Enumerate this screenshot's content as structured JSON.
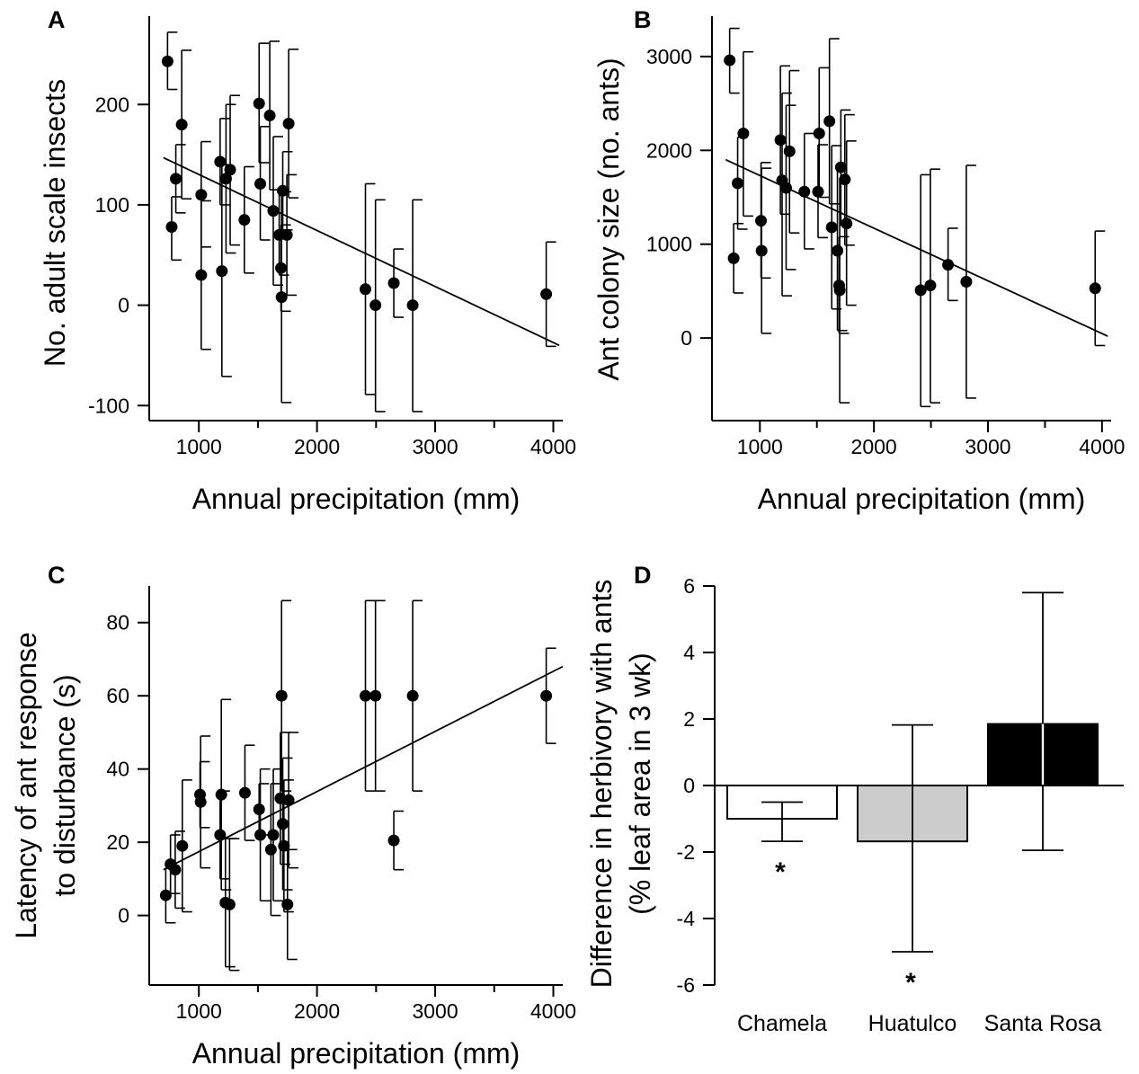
{
  "chart_data": [
    {
      "panel": "A",
      "type": "scatter",
      "xlabel": "Annual precipitation (mm)",
      "ylabel": "No. adult scale insects",
      "xlim": [
        580,
        4080
      ],
      "ylim": [
        -115,
        288
      ],
      "xticks": [
        1000,
        2000,
        3000,
        4000
      ],
      "xtick_labels": [
        "1000",
        "2000",
        "3000",
        "4000"
      ],
      "yticks": [
        -100,
        0,
        100,
        200
      ],
      "ytick_labels": [
        "-100",
        "0",
        "100",
        "200"
      ],
      "points": [
        {
          "x": 735,
          "y": 243,
          "lo": 215,
          "hi": 272
        },
        {
          "x": 770,
          "y": 78,
          "lo": 45,
          "hi": 108
        },
        {
          "x": 805,
          "y": 126,
          "lo": 92,
          "hi": 160
        },
        {
          "x": 855,
          "y": 180,
          "lo": 106,
          "hi": 254
        },
        {
          "x": 1020,
          "y": 110,
          "lo": 58,
          "hi": 163
        },
        {
          "x": 1020,
          "y": 30,
          "lo": -44,
          "hi": 104
        },
        {
          "x": 1180,
          "y": 143,
          "lo": 100,
          "hi": 186
        },
        {
          "x": 1195,
          "y": 34,
          "lo": -71,
          "hi": 140
        },
        {
          "x": 1230,
          "y": 126,
          "lo": 52,
          "hi": 200
        },
        {
          "x": 1265,
          "y": 135,
          "lo": 60,
          "hi": 209
        },
        {
          "x": 1385,
          "y": 85,
          "lo": 32,
          "hi": 138
        },
        {
          "x": 1510,
          "y": 201,
          "lo": 142,
          "hi": 261
        },
        {
          "x": 1520,
          "y": 121,
          "lo": 65,
          "hi": 178
        },
        {
          "x": 1600,
          "y": 189,
          "lo": 115,
          "hi": 263
        },
        {
          "x": 1630,
          "y": 94,
          "lo": 20,
          "hi": 168
        },
        {
          "x": 1680,
          "y": 70,
          "lo": 30,
          "hi": 110
        },
        {
          "x": 1695,
          "y": 37,
          "lo": -6,
          "hi": 80
        },
        {
          "x": 1700,
          "y": 8,
          "lo": -97,
          "hi": 113
        },
        {
          "x": 1710,
          "y": 114,
          "lo": 75,
          "hi": 153
        },
        {
          "x": 1745,
          "y": 70,
          "lo": 10,
          "hi": 130
        },
        {
          "x": 1760,
          "y": 181,
          "lo": 107,
          "hi": 255
        },
        {
          "x": 2410,
          "y": 16,
          "lo": -89,
          "hi": 121
        },
        {
          "x": 2495,
          "y": 0,
          "lo": -106,
          "hi": 105
        },
        {
          "x": 2650,
          "y": 22,
          "lo": -12,
          "hi": 56
        },
        {
          "x": 2810,
          "y": 0,
          "lo": -106,
          "hi": 105
        },
        {
          "x": 3940,
          "y": 11,
          "lo": -41,
          "hi": 63
        }
      ],
      "fit_line": {
        "x": [
          700,
          4050
        ],
        "y": [
          147,
          -40
        ]
      }
    },
    {
      "panel": "B",
      "type": "scatter",
      "xlabel": "Annual precipitation (mm)",
      "ylabel": "Ant colony size (no. ants)",
      "xlim": [
        580,
        4080
      ],
      "ylim": [
        -880,
        3430
      ],
      "xticks": [
        1000,
        2000,
        3000,
        4000
      ],
      "xtick_labels": [
        "1000",
        "2000",
        "3000",
        "4000"
      ],
      "yticks": [
        0,
        1000,
        2000,
        3000
      ],
      "ytick_labels": [
        "0",
        "1000",
        "2000",
        "3000"
      ],
      "points": [
        {
          "x": 735,
          "y": 2960,
          "lo": 2610,
          "hi": 3300
        },
        {
          "x": 770,
          "y": 850,
          "lo": 480,
          "hi": 1220
        },
        {
          "x": 805,
          "y": 1650,
          "lo": 1160,
          "hi": 2140
        },
        {
          "x": 855,
          "y": 2180,
          "lo": 1300,
          "hi": 3050
        },
        {
          "x": 1010,
          "y": 1250,
          "lo": 640,
          "hi": 1870
        },
        {
          "x": 1015,
          "y": 930,
          "lo": 50,
          "hi": 1810
        },
        {
          "x": 1180,
          "y": 2110,
          "lo": 1320,
          "hi": 2900
        },
        {
          "x": 1195,
          "y": 1680,
          "lo": 450,
          "hi": 2610
        },
        {
          "x": 1230,
          "y": 1600,
          "lo": 730,
          "hi": 2480
        },
        {
          "x": 1260,
          "y": 1990,
          "lo": 1120,
          "hi": 2850
        },
        {
          "x": 1390,
          "y": 1560,
          "lo": 950,
          "hi": 2180
        },
        {
          "x": 1510,
          "y": 1560,
          "lo": 1070,
          "hi": 2060
        },
        {
          "x": 1520,
          "y": 2180,
          "lo": 1500,
          "hi": 2880
        },
        {
          "x": 1610,
          "y": 2310,
          "lo": 1430,
          "hi": 3190
        },
        {
          "x": 1630,
          "y": 1180,
          "lo": 310,
          "hi": 2050
        },
        {
          "x": 1680,
          "y": 930,
          "lo": 80,
          "hi": 1800
        },
        {
          "x": 1695,
          "y": 560,
          "lo": 50,
          "hi": 1080
        },
        {
          "x": 1700,
          "y": 510,
          "lo": -690,
          "hi": 1700
        },
        {
          "x": 1710,
          "y": 1820,
          "lo": 1200,
          "hi": 2430
        },
        {
          "x": 1745,
          "y": 1690,
          "lo": 990,
          "hi": 2380
        },
        {
          "x": 1760,
          "y": 1220,
          "lo": 350,
          "hi": 2100
        },
        {
          "x": 2410,
          "y": 510,
          "lo": -730,
          "hi": 1740
        },
        {
          "x": 2495,
          "y": 560,
          "lo": -690,
          "hi": 1800
        },
        {
          "x": 2650,
          "y": 780,
          "lo": 400,
          "hi": 1170
        },
        {
          "x": 2810,
          "y": 600,
          "lo": -640,
          "hi": 1840
        },
        {
          "x": 3940,
          "y": 530,
          "lo": -80,
          "hi": 1140
        }
      ],
      "fit_line": {
        "x": [
          700,
          4050
        ],
        "y": [
          1900,
          20
        ]
      }
    },
    {
      "panel": "C",
      "type": "scatter",
      "xlabel": "Annual precipitation (mm)",
      "ylabel": "Latency of ant response to disturbance (s)",
      "ylabel_lines": [
        "Latency of ant response",
        "to disturbance (s)"
      ],
      "xlim": [
        580,
        4080
      ],
      "ylim": [
        -19,
        90
      ],
      "xticks": [
        1000,
        2000,
        3000,
        4000
      ],
      "xtick_labels": [
        "1000",
        "2000",
        "3000",
        "4000"
      ],
      "yticks": [
        0,
        20,
        40,
        60,
        80
      ],
      "ytick_labels": [
        "0",
        "20",
        "40",
        "60",
        "80"
      ],
      "points": [
        {
          "x": 720,
          "y": 5.5,
          "lo": -2,
          "hi": 13
        },
        {
          "x": 760,
          "y": 14,
          "lo": 6,
          "hi": 22
        },
        {
          "x": 800,
          "y": 12.5,
          "lo": 2,
          "hi": 23
        },
        {
          "x": 860,
          "y": 19,
          "lo": 1,
          "hi": 37
        },
        {
          "x": 1010,
          "y": 33,
          "lo": 24,
          "hi": 42
        },
        {
          "x": 1015,
          "y": 31,
          "lo": 13,
          "hi": 49
        },
        {
          "x": 1180,
          "y": 22,
          "lo": 10,
          "hi": 34
        },
        {
          "x": 1190,
          "y": 33,
          "lo": 7,
          "hi": 59
        },
        {
          "x": 1225,
          "y": 3.5,
          "lo": -14,
          "hi": 21
        },
        {
          "x": 1260,
          "y": 3,
          "lo": -15,
          "hi": 21
        },
        {
          "x": 1390,
          "y": 33.5,
          "lo": 20.5,
          "hi": 46.5
        },
        {
          "x": 1510,
          "y": 29,
          "lo": 22,
          "hi": 36
        },
        {
          "x": 1520,
          "y": 22,
          "lo": 4,
          "hi": 40
        },
        {
          "x": 1610,
          "y": 18,
          "lo": 0,
          "hi": 36
        },
        {
          "x": 1630,
          "y": 22,
          "lo": 4,
          "hi": 40
        },
        {
          "x": 1690,
          "y": 32,
          "lo": 14,
          "hi": 50
        },
        {
          "x": 1700,
          "y": 60,
          "lo": 34,
          "hi": 86
        },
        {
          "x": 1710,
          "y": 25,
          "lo": 7,
          "hi": 43
        },
        {
          "x": 1720,
          "y": 19,
          "lo": 1,
          "hi": 37
        },
        {
          "x": 1750,
          "y": 3,
          "lo": -12,
          "hi": 18
        },
        {
          "x": 1760,
          "y": 31.5,
          "lo": 13,
          "hi": 50
        },
        {
          "x": 2410,
          "y": 60,
          "lo": 34,
          "hi": 86
        },
        {
          "x": 2495,
          "y": 60,
          "lo": 34,
          "hi": 86
        },
        {
          "x": 2650,
          "y": 20.5,
          "lo": 12.5,
          "hi": 28.5
        },
        {
          "x": 2810,
          "y": 60,
          "lo": 34,
          "hi": 86
        },
        {
          "x": 3940,
          "y": 60,
          "lo": 47,
          "hi": 73
        }
      ],
      "fit_line": {
        "x": [
          700,
          4080
        ],
        "y": [
          12.5,
          68
        ]
      }
    },
    {
      "panel": "D",
      "type": "bar",
      "ylabel": "Difference in herbivory with ants (% leaf area in 3 wk)",
      "ylabel_lines": [
        "Difference in herbivory with ants",
        "(% leaf area in 3 wk)"
      ],
      "ylim": [
        -6,
        6
      ],
      "yticks": [
        -6,
        -4,
        -2,
        0,
        2,
        4,
        6
      ],
      "ytick_labels": [
        "-6",
        "-4",
        "-2",
        "0",
        "2",
        "4",
        "6"
      ],
      "categories": [
        "Chamela",
        "Huatulco",
        "Santa Rosa"
      ],
      "values": [
        -1.0,
        -1.68,
        1.85
      ],
      "err_lo": [
        -1.68,
        -5.0,
        -1.95
      ],
      "err_hi": [
        -0.5,
        1.82,
        5.8
      ],
      "bar_colors": [
        "#ffffff",
        "#cccccc",
        "#000000"
      ],
      "significance": [
        "*",
        "*",
        ""
      ]
    }
  ]
}
